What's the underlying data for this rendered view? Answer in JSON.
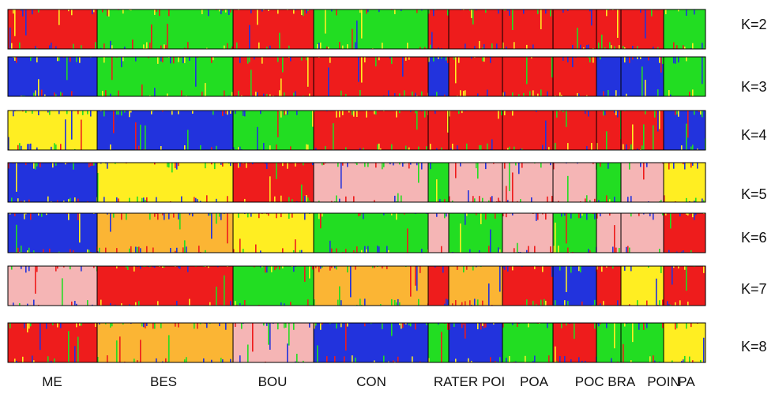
{
  "colors": {
    "red": "#ee1c1c",
    "green": "#22dd22",
    "blue": "#2233dd",
    "yellow": "#ffee22",
    "pink": "#f5b5b5",
    "orange": "#fbb534",
    "divider": "#000000"
  },
  "chart_data": {
    "type": "bar",
    "subtype": "stacked-admixture",
    "populations": [
      "ME",
      "BES",
      "BOU",
      "CON",
      "RATER",
      "POI",
      "POA",
      "POC",
      "BRA",
      "POIN",
      "PA"
    ],
    "population_labels": [
      "ME",
      "BES",
      "BOU",
      "CON",
      "RATER POI",
      "POA",
      "POC BRA",
      "POIN",
      "PA"
    ],
    "panels": [
      {
        "label": "K=2",
        "dominant_colors": [
          "red",
          "green",
          "red",
          "green",
          "red",
          "red",
          "red",
          "red",
          "red",
          "red",
          "green"
        ]
      },
      {
        "label": "K=3",
        "dominant_colors": [
          "blue",
          "green",
          "red",
          "red",
          "blue",
          "red",
          "red",
          "red",
          "blue",
          "blue",
          "green"
        ]
      },
      {
        "label": "K=4",
        "dominant_colors": [
          "yellow",
          "blue",
          "green",
          "red",
          "red",
          "red",
          "red",
          "red",
          "red",
          "red",
          "blue"
        ]
      },
      {
        "label": "K=5",
        "dominant_colors": [
          "blue",
          "yellow",
          "red",
          "pink",
          "green",
          "pink",
          "pink",
          "pink",
          "green",
          "pink",
          "yellow"
        ]
      },
      {
        "label": "K=6",
        "dominant_colors": [
          "blue",
          "orange",
          "yellow",
          "green",
          "pink",
          "green",
          "pink",
          "green",
          "pink",
          "pink",
          "red"
        ]
      },
      {
        "label": "K=7",
        "dominant_colors": [
          "pink",
          "red",
          "green",
          "orange",
          "red",
          "orange",
          "red",
          "blue",
          "red",
          "yellow",
          "red"
        ]
      },
      {
        "label": "K=8",
        "dominant_colors": [
          "red",
          "orange",
          "pink",
          "blue",
          "green",
          "blue",
          "green",
          "red",
          "green",
          "green",
          "yellow"
        ]
      }
    ]
  }
}
